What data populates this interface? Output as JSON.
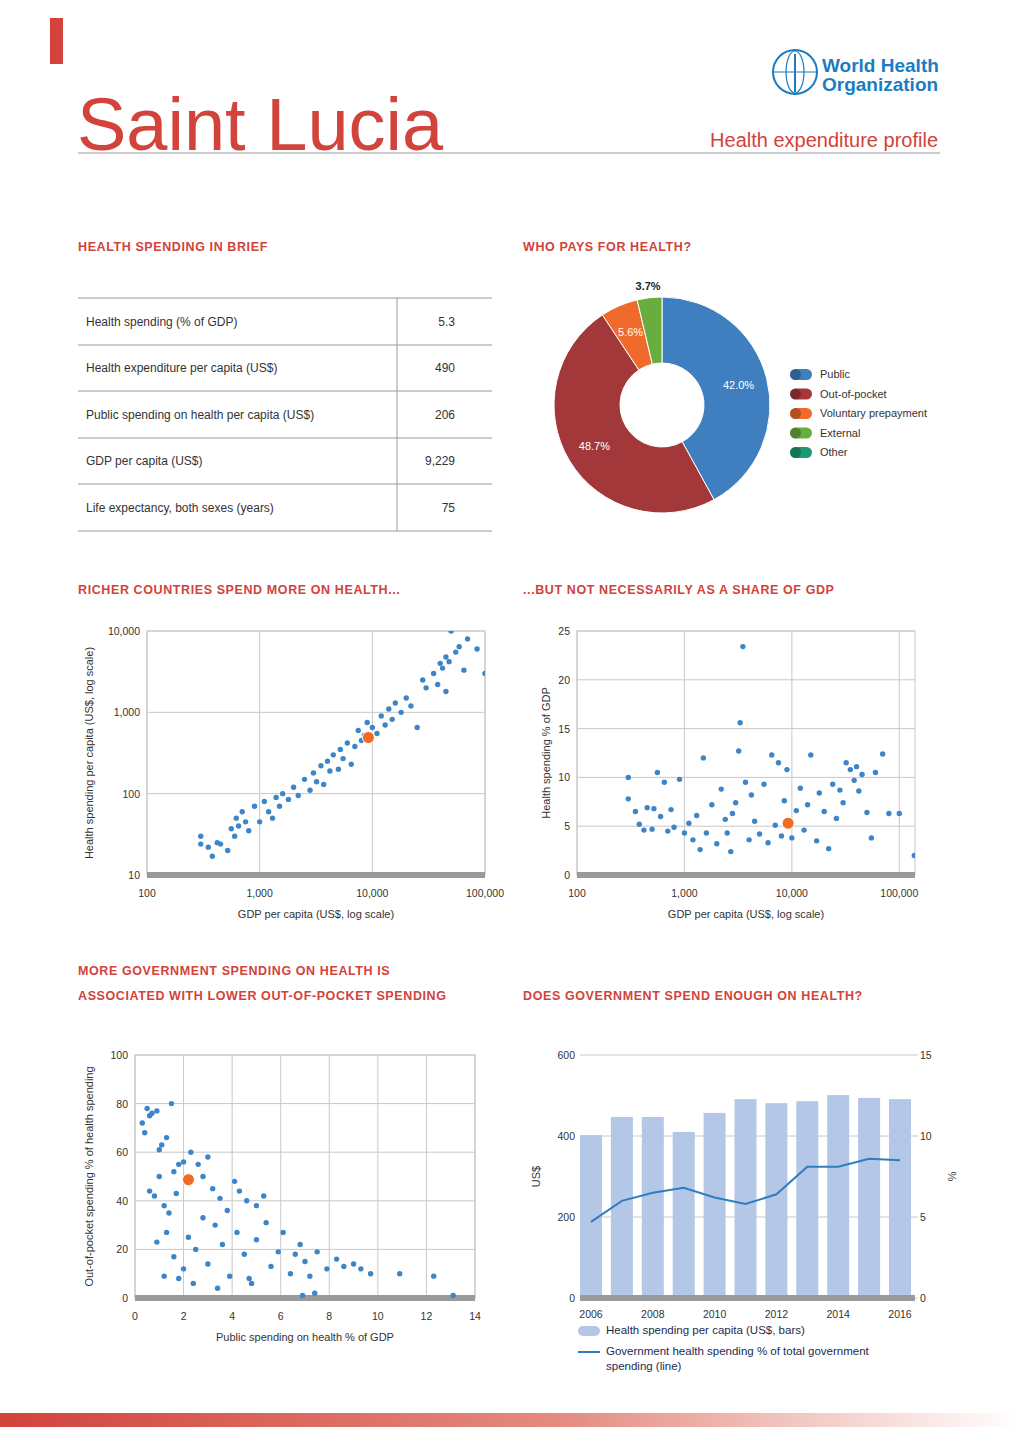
{
  "header": {
    "title": "Saint Lucia",
    "subtitle": "Health expenditure profile",
    "logo_text": [
      "World Health",
      "Organization"
    ]
  },
  "brief": {
    "title": "HEALTH SPENDING IN BRIEF",
    "rows": [
      [
        "Health spending (% of GDP)",
        "5.3"
      ],
      [
        "Health expenditure per capita (US$)",
        "490"
      ],
      [
        "Public spending on health per capita (US$)",
        "206"
      ],
      [
        "GDP per capita (US$)",
        "9,229"
      ],
      [
        "Life expectancy, both sexes (years)",
        "75"
      ]
    ]
  },
  "chart_data": [
    {
      "type": "pie",
      "title": "WHO PAYS FOR HEALTH?",
      "categories": [
        "Public",
        "Out-of-pocket",
        "Voluntary prepayment",
        "External",
        "Other"
      ],
      "values": [
        42.0,
        48.7,
        5.6,
        3.7,
        0
      ],
      "value_labels": [
        "42.0%",
        "48.7%",
        "5.6%",
        "3.7%",
        null
      ],
      "colors": [
        "#3f7fbf",
        "#a3383a",
        "#f06a2b",
        "#6aad3f",
        "#1a9b75"
      ],
      "data_labels": true,
      "legend": "right"
    },
    {
      "type": "scatter",
      "title": "RICHER COUNTRIES SPEND MORE ON HEALTH...",
      "x_label": "GDP per capita (US$, log scale)",
      "y_label": "Health spending per capita (US$, log scale)",
      "log": true,
      "grid": true,
      "xlim": [
        100,
        100000
      ],
      "ylim": [
        10,
        10000
      ],
      "xticks": [
        100,
        {
          "value": 1000,
          "label": "1,000"
        },
        {
          "value": 10000,
          "label": "10,000"
        },
        {
          "value": 100000,
          "label": "100,000"
        }
      ],
      "yticks": [
        10,
        100,
        {
          "value": 1000,
          "label": "1,000"
        },
        {
          "value": 10000,
          "label": "10,000"
        }
      ],
      "series": [
        {
          "color": "#3d85c6",
          "marker": "circle",
          "x": [
            300,
            300,
            350,
            380,
            420,
            450,
            520,
            560,
            600,
            620,
            650,
            700,
            750,
            800,
            900,
            1000,
            1100,
            1200,
            1300,
            1400,
            1500,
            1600,
            1800,
            2000,
            2200,
            2500,
            2800,
            3000,
            3200,
            3500,
            3700,
            4000,
            4200,
            4500,
            5000,
            5200,
            5500,
            6000,
            6500,
            7000,
            7500,
            8000,
            8500,
            9000,
            10000,
            11000,
            12000,
            13000,
            14000,
            15000,
            16000,
            18000,
            20000,
            22000,
            25000,
            28000,
            30000,
            35000,
            38000,
            40000,
            42000,
            45000,
            45000,
            48000,
            50000,
            55000,
            59000,
            65000,
            70000,
            85000,
            100000
          ],
          "values": [
            30,
            24,
            22,
            17,
            25,
            24,
            20,
            37,
            30,
            50,
            40,
            60,
            45,
            35,
            70,
            45,
            80,
            60,
            50,
            90,
            70,
            100,
            85,
            120,
            95,
            150,
            110,
            180,
            140,
            220,
            130,
            250,
            190,
            300,
            200,
            350,
            270,
            420,
            230,
            380,
            600,
            450,
            520,
            750,
            650,
            550,
            900,
            700,
            1100,
            820,
            1300,
            1000,
            1500,
            1200,
            650,
            2500,
            2000,
            3000,
            2200,
            4000,
            3500,
            4800,
            1800,
            4200,
            10000,
            5500,
            6400,
            3300,
            8000,
            6000,
            3000
          ]
        },
        {
          "color": "#f26b22",
          "marker": "circle",
          "x": [
            9229
          ],
          "values": [
            490
          ]
        }
      ]
    },
    {
      "type": "scatter",
      "title": "...BUT NOT NECESSARILY AS A SHARE OF GDP",
      "x_label": "GDP per capita (US$, log scale)",
      "y_label": "Health spending % of GDP",
      "log": "x",
      "grid": true,
      "xlim": [
        100,
        140000
      ],
      "ylim": [
        0,
        25
      ],
      "xticks": [
        100,
        {
          "value": 1000,
          "label": "1,000"
        },
        {
          "value": 10000,
          "label": "10,000"
        },
        {
          "value": 100000,
          "label": "100,000"
        }
      ],
      "yticks": [
        0,
        5,
        10,
        15,
        20,
        25
      ],
      "series": [
        {
          "color": "#3d85c6",
          "marker": "circle",
          "x": [
            300,
            300,
            350,
            380,
            420,
            450,
            500,
            520,
            560,
            600,
            650,
            700,
            750,
            800,
            900,
            1000,
            1100,
            1200,
            1300,
            1400,
            1500,
            1600,
            1800,
            2000,
            2200,
            2400,
            2500,
            2700,
            2800,
            3000,
            3200,
            3300,
            3500,
            3700,
            4000,
            4200,
            4500,
            5000,
            5500,
            6000,
            6500,
            7000,
            7500,
            8000,
            8500,
            9000,
            10000,
            11000,
            12000,
            13000,
            14000,
            15000,
            17000,
            18000,
            20000,
            22000,
            24000,
            26000,
            28000,
            30000,
            32000,
            35000,
            38000,
            40000,
            42000,
            45000,
            50000,
            55000,
            60000,
            70000,
            80000,
            100000,
            138000
          ],
          "values": [
            10,
            7.8,
            6.5,
            5.2,
            4.6,
            6.9,
            4.7,
            6.8,
            10.5,
            6,
            9.5,
            4.5,
            6.7,
            4.9,
            9.8,
            4.3,
            5.3,
            3.6,
            6.1,
            2.6,
            12,
            4.3,
            7.2,
            3.2,
            8.8,
            5.7,
            4.3,
            2.4,
            6.3,
            7.4,
            12.7,
            15.6,
            23.4,
            9.5,
            3.6,
            8.2,
            5.5,
            4.2,
            9.3,
            3.3,
            12.3,
            5.1,
            11.5,
            4,
            7.6,
            10.8,
            3.8,
            6.6,
            8.9,
            4.6,
            7.2,
            12.3,
            3.5,
            8.4,
            6.5,
            2.7,
            9.3,
            5.8,
            8.7,
            7.4,
            11.5,
            10.8,
            9.7,
            11.1,
            8.6,
            10.3,
            6.4,
            3.8,
            10.5,
            12.4,
            6.3,
            6.3,
            2
          ]
        },
        {
          "color": "#f26b22",
          "marker": "circle",
          "x": [
            9229
          ],
          "values": [
            5.3
          ]
        }
      ]
    },
    {
      "type": "scatter",
      "title": [
        "MORE GOVERNMENT SPENDING ON HEALTH IS",
        "ASSOCIATED WITH LOWER OUT-OF-POCKET SPENDING"
      ],
      "x_label": "Public spending on health % of GDP",
      "y_label": "Out-of-pocket spending % of health spending",
      "grid": true,
      "xlim": [
        0,
        14
      ],
      "ylim": [
        0,
        100
      ],
      "xticks": [
        0,
        2,
        4,
        6,
        8,
        10,
        12,
        14
      ],
      "yticks": [
        0,
        20,
        40,
        60,
        80,
        100
      ],
      "series": [
        {
          "color": "#3d85c6",
          "marker": "circle",
          "x": [
            0.3,
            0.4,
            0.5,
            0.6,
            0.7,
            0.9,
            1.0,
            1.1,
            1.3,
            1.5,
            0.6,
            0.8,
            1.0,
            1.2,
            1.4,
            1.6,
            1.7,
            1.8,
            2.0,
            2.3,
            2.6,
            2.8,
            3.0,
            3.2,
            3.5,
            3.8,
            4.1,
            4.3,
            4.6,
            5.0,
            5.3,
            0.9,
            1.3,
            1.6,
            1.8,
            2.0,
            2.2,
            2.5,
            2.8,
            3.0,
            3.3,
            3.6,
            3.9,
            4.2,
            4.5,
            4.8,
            5.0,
            5.4,
            5.6,
            5.9,
            6.1,
            6.4,
            6.6,
            6.8,
            7.0,
            7.2,
            7.5,
            7.9,
            8.3,
            8.6,
            9.0,
            9.3,
            9.7,
            10.9,
            12.3,
            13.1,
            6.9,
            7.4,
            1.2,
            2.4,
            3.4,
            4.7
          ],
          "values": [
            72,
            68,
            78,
            75,
            76,
            77,
            61,
            63,
            66,
            80,
            44,
            42,
            50,
            38,
            35,
            52,
            43,
            55,
            56,
            60,
            55,
            50,
            58,
            45,
            41,
            36,
            48,
            44,
            40,
            38,
            42,
            23,
            27,
            17,
            8,
            12,
            25,
            20,
            33,
            14,
            30,
            22,
            9,
            27,
            18,
            6,
            24,
            31,
            13,
            19,
            27,
            10,
            18,
            22,
            15,
            9,
            19,
            12,
            16,
            13,
            14,
            12,
            10,
            10,
            9,
            1,
            1,
            2,
            9,
            6,
            4,
            8
          ]
        },
        {
          "color": "#f26b22",
          "marker": "circle",
          "x": [
            2.2
          ],
          "values": [
            48.7
          ]
        }
      ]
    },
    {
      "type": "bar",
      "title": "DOES GOVERNMENT SPEND ENOUGH ON HEALTH?",
      "categories": [
        "2006",
        null,
        "2008",
        null,
        "2010",
        null,
        "2012",
        null,
        "2014",
        null,
        "2016"
      ],
      "y_label": "US$",
      "y2_label": "%",
      "ylim": [
        0,
        600
      ],
      "yticks": [
        0,
        200,
        400,
        600
      ],
      "y2lim": [
        0,
        15
      ],
      "y2ticks": [
        0,
        5,
        10,
        15
      ],
      "grid": true,
      "legend": "bottom",
      "series": [
        {
          "name": "Health spending per capita (US$, bars)",
          "type": "bar",
          "color": "#b4c7e7",
          "values": [
            402,
            447,
            447,
            410,
            457,
            491,
            481,
            486,
            501,
            494,
            491
          ]
        },
        {
          "name": "Government health spending % of total government spending (line)",
          "type": "line",
          "axis": "y2",
          "color": "#2e7ebf",
          "values": [
            4.7,
            6.0,
            6.5,
            6.8,
            6.2,
            5.8,
            6.4,
            8.1,
            8.1,
            8.6,
            8.5
          ]
        }
      ]
    }
  ]
}
